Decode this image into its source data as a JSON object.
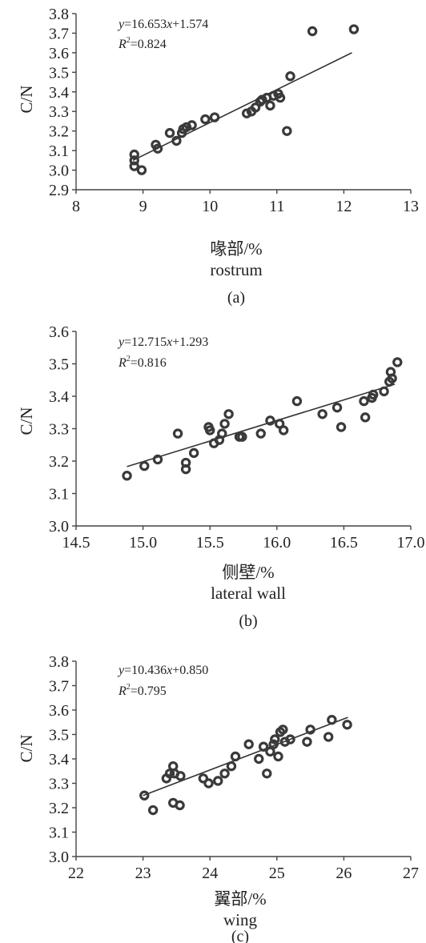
{
  "chart_data": [
    {
      "type": "scatter",
      "panel_label": "(a)",
      "ylabel": "C/N",
      "xlabel_cn": "喙部/%",
      "xlabel_en": "rostrum",
      "equation": {
        "y": "y",
        "eq": "=16.653",
        "x": "x",
        "rest": "+1.574"
      },
      "r2": {
        "r": "R",
        "sup": "2",
        "val": "=0.824"
      },
      "xlim": [
        8,
        13
      ],
      "ylim": [
        2.9,
        3.8
      ],
      "xticks": [
        "8",
        "9",
        "10",
        "11",
        "12",
        "13"
      ],
      "yticks": [
        "2.9",
        "3.0",
        "3.1",
        "3.2",
        "3.3",
        "3.4",
        "3.5",
        "3.6",
        "3.7",
        "3.8"
      ],
      "fit": {
        "x": [
          8.85,
          12.12
        ],
        "y": [
          3.05,
          3.6
        ]
      },
      "points": [
        {
          "x": 8.87,
          "y": 3.08
        },
        {
          "x": 8.87,
          "y": 3.05
        },
        {
          "x": 8.87,
          "y": 3.02
        },
        {
          "x": 8.98,
          "y": 3.0
        },
        {
          "x": 9.19,
          "y": 3.13
        },
        {
          "x": 9.22,
          "y": 3.11
        },
        {
          "x": 9.4,
          "y": 3.19
        },
        {
          "x": 9.5,
          "y": 3.15
        },
        {
          "x": 9.58,
          "y": 3.19
        },
        {
          "x": 9.6,
          "y": 3.21
        },
        {
          "x": 9.65,
          "y": 3.22
        },
        {
          "x": 9.73,
          "y": 3.23
        },
        {
          "x": 9.93,
          "y": 3.26
        },
        {
          "x": 10.07,
          "y": 3.27
        },
        {
          "x": 10.55,
          "y": 3.29
        },
        {
          "x": 10.62,
          "y": 3.3
        },
        {
          "x": 10.68,
          "y": 3.32
        },
        {
          "x": 10.75,
          "y": 3.35
        },
        {
          "x": 10.78,
          "y": 3.36
        },
        {
          "x": 10.85,
          "y": 3.37
        },
        {
          "x": 10.9,
          "y": 3.33
        },
        {
          "x": 10.95,
          "y": 3.38
        },
        {
          "x": 11.02,
          "y": 3.39
        },
        {
          "x": 11.05,
          "y": 3.37
        },
        {
          "x": 11.15,
          "y": 3.2
        },
        {
          "x": 11.2,
          "y": 3.48
        },
        {
          "x": 11.53,
          "y": 3.71
        },
        {
          "x": 12.15,
          "y": 3.72
        }
      ]
    },
    {
      "type": "scatter",
      "panel_label": "(b)",
      "ylabel": "C/N",
      "xlabel_cn": "侧壁/%",
      "xlabel_en": "lateral wall",
      "equation": {
        "y": "y",
        "eq": "=12.715",
        "x": "x",
        "rest": "+1.293"
      },
      "r2": {
        "r": "R",
        "sup": "2",
        "val": "=0.816"
      },
      "xlim": [
        14.5,
        17.0
      ],
      "ylim": [
        3.0,
        3.6
      ],
      "xticks": [
        "14.5",
        "15.0",
        "15.5",
        "16.0",
        "16.5",
        "17.0"
      ],
      "yticks": [
        "3.0",
        "3.1",
        "3.2",
        "3.3",
        "3.4",
        "3.5",
        "3.6"
      ],
      "fit": {
        "x": [
          14.88,
          16.88
        ],
        "y": [
          3.183,
          3.437
        ]
      },
      "points": [
        {
          "x": 14.88,
          "y": 3.155
        },
        {
          "x": 15.01,
          "y": 3.185
        },
        {
          "x": 15.11,
          "y": 3.205
        },
        {
          "x": 15.26,
          "y": 3.285
        },
        {
          "x": 15.32,
          "y": 3.195
        },
        {
          "x": 15.32,
          "y": 3.175
        },
        {
          "x": 15.38,
          "y": 3.225
        },
        {
          "x": 15.49,
          "y": 3.305
        },
        {
          "x": 15.5,
          "y": 3.295
        },
        {
          "x": 15.53,
          "y": 3.255
        },
        {
          "x": 15.57,
          "y": 3.265
        },
        {
          "x": 15.59,
          "y": 3.285
        },
        {
          "x": 15.61,
          "y": 3.315
        },
        {
          "x": 15.64,
          "y": 3.345
        },
        {
          "x": 15.72,
          "y": 3.275
        },
        {
          "x": 15.74,
          "y": 3.275
        },
        {
          "x": 15.88,
          "y": 3.285
        },
        {
          "x": 15.95,
          "y": 3.325
        },
        {
          "x": 16.02,
          "y": 3.315
        },
        {
          "x": 16.05,
          "y": 3.295
        },
        {
          "x": 16.15,
          "y": 3.385
        },
        {
          "x": 16.34,
          "y": 3.345
        },
        {
          "x": 16.45,
          "y": 3.365
        },
        {
          "x": 16.48,
          "y": 3.305
        },
        {
          "x": 16.65,
          "y": 3.385
        },
        {
          "x": 16.66,
          "y": 3.335
        },
        {
          "x": 16.71,
          "y": 3.395
        },
        {
          "x": 16.72,
          "y": 3.405
        },
        {
          "x": 16.8,
          "y": 3.415
        },
        {
          "x": 16.84,
          "y": 3.445
        },
        {
          "x": 16.85,
          "y": 3.475
        },
        {
          "x": 16.86,
          "y": 3.455
        },
        {
          "x": 16.9,
          "y": 3.505
        }
      ]
    },
    {
      "type": "scatter",
      "panel_label": "(c)",
      "ylabel": "C/N",
      "xlabel_cn": "翼部/%",
      "xlabel_en": "wing",
      "equation": {
        "y": "y",
        "eq": "=10.436",
        "x": "x",
        "rest": "+0.850"
      },
      "r2": {
        "r": "R",
        "sup": "2",
        "val": "=0.795"
      },
      "xlim": [
        22,
        27
      ],
      "ylim": [
        3.0,
        3.8
      ],
      "xticks": [
        "22",
        "23",
        "24",
        "25",
        "26",
        "27"
      ],
      "yticks": [
        "3.0",
        "3.1",
        "3.2",
        "3.3",
        "3.4",
        "3.5",
        "3.6",
        "3.7",
        "3.8"
      ],
      "fit": {
        "x": [
          23.0,
          26.06
        ],
        "y": [
          3.25,
          3.57
        ]
      },
      "points": [
        {
          "x": 23.02,
          "y": 3.25
        },
        {
          "x": 23.15,
          "y": 3.19
        },
        {
          "x": 23.35,
          "y": 3.32
        },
        {
          "x": 23.4,
          "y": 3.34
        },
        {
          "x": 23.45,
          "y": 3.37
        },
        {
          "x": 23.47,
          "y": 3.34
        },
        {
          "x": 23.45,
          "y": 3.22
        },
        {
          "x": 23.55,
          "y": 3.21
        },
        {
          "x": 23.56,
          "y": 3.33
        },
        {
          "x": 23.9,
          "y": 3.32
        },
        {
          "x": 23.98,
          "y": 3.3
        },
        {
          "x": 24.12,
          "y": 3.31
        },
        {
          "x": 24.22,
          "y": 3.34
        },
        {
          "x": 24.32,
          "y": 3.37
        },
        {
          "x": 24.38,
          "y": 3.41
        },
        {
          "x": 24.58,
          "y": 3.46
        },
        {
          "x": 24.73,
          "y": 3.4
        },
        {
          "x": 24.8,
          "y": 3.45
        },
        {
          "x": 24.85,
          "y": 3.34
        },
        {
          "x": 24.9,
          "y": 3.43
        },
        {
          "x": 24.95,
          "y": 3.46
        },
        {
          "x": 24.97,
          "y": 3.48
        },
        {
          "x": 25.02,
          "y": 3.41
        },
        {
          "x": 25.05,
          "y": 3.51
        },
        {
          "x": 25.09,
          "y": 3.52
        },
        {
          "x": 25.12,
          "y": 3.47
        },
        {
          "x": 25.2,
          "y": 3.48
        },
        {
          "x": 25.45,
          "y": 3.47
        },
        {
          "x": 25.5,
          "y": 3.52
        },
        {
          "x": 25.77,
          "y": 3.49
        },
        {
          "x": 25.82,
          "y": 3.56
        },
        {
          "x": 26.05,
          "y": 3.54
        }
      ]
    }
  ]
}
